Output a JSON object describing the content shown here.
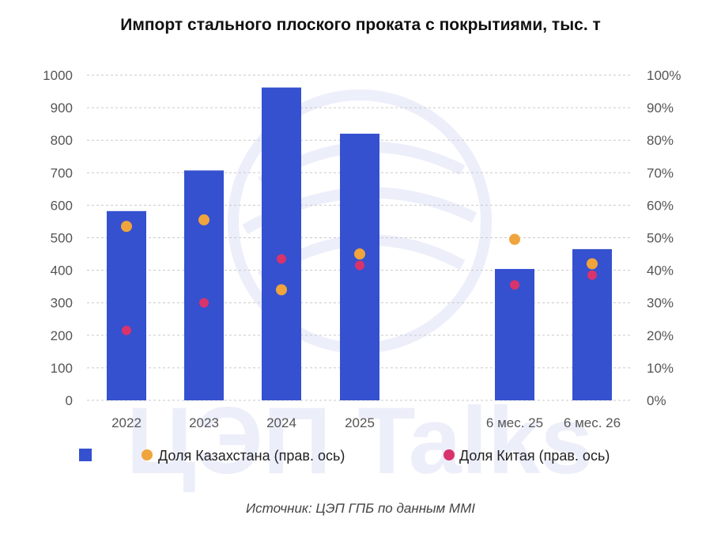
{
  "chart_data": {
    "type": "bar",
    "title": "Импорт стального плоского проката с покрытиями, тыс. т",
    "categories": [
      "2022",
      "2023",
      "2024",
      "2025",
      "6 мес. 25",
      "6 мес. 26"
    ],
    "series": [
      {
        "name": "",
        "kind": "bar",
        "axis": "left",
        "color": "#3551cf",
        "values": [
          582,
          707,
          962,
          820,
          404,
          465
        ]
      },
      {
        "name": "Доля Казахстана (прав. ось)",
        "kind": "scatter",
        "axis": "right",
        "color": "#f0a43c",
        "values": [
          53.5,
          55.5,
          34.0,
          45.0,
          49.5,
          42.0
        ]
      },
      {
        "name": "Доля Китая (прав. ось)",
        "kind": "scatter",
        "axis": "right",
        "color": "#d8336b",
        "values": [
          21.5,
          30.0,
          43.5,
          41.5,
          35.5,
          38.5
        ]
      }
    ],
    "y_left": {
      "lim": [
        0,
        1000
      ],
      "ticks": [
        "0",
        "100",
        "200",
        "300",
        "400",
        "500",
        "600",
        "700",
        "800",
        "900",
        "1000"
      ]
    },
    "y_right": {
      "lim": [
        0,
        100
      ],
      "ticks": [
        "0%",
        "10%",
        "20%",
        "30%",
        "40%",
        "50%",
        "60%",
        "70%",
        "80%",
        "90%",
        "100%"
      ]
    },
    "grid": true,
    "legend_position": "bottom"
  },
  "watermark_text": "ЦЭП Talks",
  "source_text": "Источник: ЦЭП ГПБ по данным MMI"
}
